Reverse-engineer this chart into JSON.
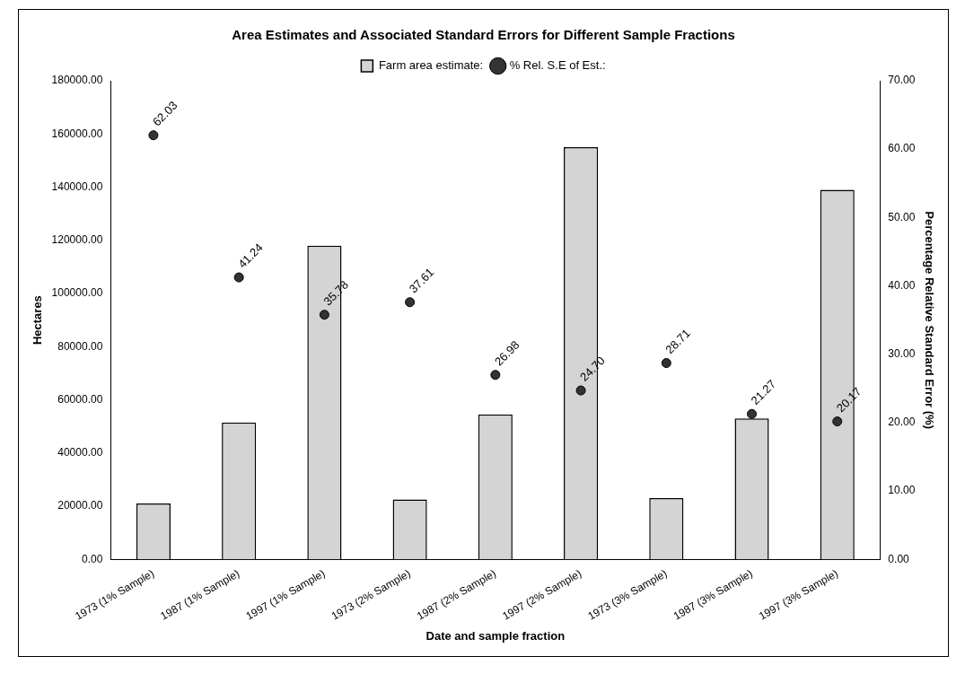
{
  "chart_data": {
    "type": "bar",
    "title": "Area Estimates and Associated Standard Errors for Different Sample Fractions",
    "xlabel": "Date and sample fraction",
    "ylabel": "Hectares",
    "y2label": "Percentage Relative Standard Error (%)",
    "categories": [
      "1973 (1% Sample)",
      "1987 (1% Sample)",
      "1997 (1% Sample)",
      "1973 (2% Sample)",
      "1987 (2% Sample)",
      "1997 (2% Sample)",
      "1973 (3% Sample)",
      "1987 (3% Sample)",
      "1997 (3% Sample)"
    ],
    "series": [
      {
        "name": "Farm area estimate:",
        "color": "#d4d4d4",
        "values": [
          21000,
          51500,
          118000,
          22500,
          54500,
          155000,
          23000,
          53000,
          139000
        ]
      },
      {
        "name": "% Rel. S.E of Est.:",
        "type": "scatter",
        "axis": "y2",
        "color": "#333333",
        "x": [
          "1973 (1% Sample)",
          "1987 (1% Sample)",
          "1997 (1% Sample)",
          "1973 (2% Sample)",
          "1987 (2% Sample)",
          "1997 (2% Sample)",
          "1973 (3% Sample)",
          "1987 (3% Sample)",
          "1997 (3% Sample)"
        ],
        "values": [
          62.03,
          41.24,
          35.78,
          37.61,
          26.98,
          24.7,
          28.71,
          21.27,
          20.17
        ],
        "value_labels": [
          "62.03",
          "41.24",
          "35.78",
          "37.61",
          "26.98",
          "24.70",
          "28.71",
          "21.27",
          "20.17"
        ]
      }
    ],
    "ylim": [
      0,
      180000
    ],
    "yticks": [
      {
        "value": 0,
        "label": "0.00"
      },
      {
        "value": 20000,
        "label": "20000.00"
      },
      {
        "value": 40000,
        "label": "40000.00"
      },
      {
        "value": 60000,
        "label": "60000.00"
      },
      {
        "value": 80000,
        "label": "80000.00"
      },
      {
        "value": 100000,
        "label": "100000.00"
      },
      {
        "value": 120000,
        "label": "120000.00"
      },
      {
        "value": 140000,
        "label": "140000.00"
      },
      {
        "value": 160000,
        "label": "160000.00"
      },
      {
        "value": 180000,
        "label": "180000.00"
      }
    ],
    "y2lim": [
      0,
      70
    ],
    "y2ticks": [
      {
        "value": 0,
        "label": "0.00"
      },
      {
        "value": 10,
        "label": "10.00"
      },
      {
        "value": 20,
        "label": "20.00"
      },
      {
        "value": 30,
        "label": "30.00"
      },
      {
        "value": 40,
        "label": "40.00"
      },
      {
        "value": 50,
        "label": "50.00"
      },
      {
        "value": 60,
        "label": "60.00"
      },
      {
        "value": 70,
        "label": "70.00"
      }
    ],
    "grid": false,
    "legend": "top",
    "marker": "circle"
  }
}
